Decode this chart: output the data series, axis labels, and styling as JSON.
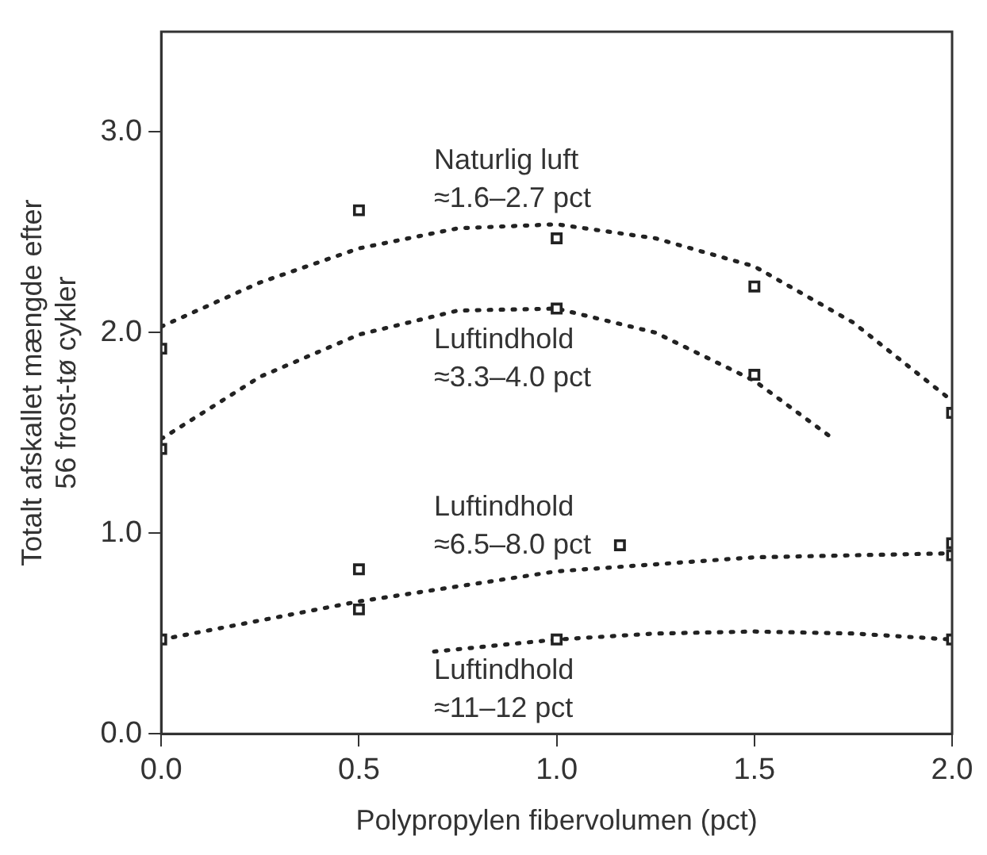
{
  "chart_data": {
    "type": "scatter",
    "xlabel": "Polypropylen fibervolumen (pct)",
    "ylabel": "Totalt afskallet mængde efter\n56 frost-tø cykler",
    "xlim": [
      0,
      2.0
    ],
    "ylim": [
      0,
      3.5
    ],
    "xticks": [
      {
        "value": 0,
        "label": "0.0"
      },
      {
        "value": 0.5,
        "label": "0.5"
      },
      {
        "value": 1,
        "label": "1.0"
      },
      {
        "value": 1.5,
        "label": "1.5"
      },
      {
        "value": 2,
        "label": "2.0"
      }
    ],
    "yticks": [
      {
        "value": 0,
        "label": "0.0"
      },
      {
        "value": 1,
        "label": "1.0"
      },
      {
        "value": 2,
        "label": "2.0"
      },
      {
        "value": 3,
        "label": "3.0"
      }
    ],
    "grid": false,
    "legend": false,
    "series": [
      {
        "type": "scatter",
        "marker": "square",
        "color": "#222222",
        "x": [
          0,
          0.5,
          1.0,
          1.5,
          2.0
        ],
        "values": [
          1.92,
          2.61,
          2.47,
          2.23,
          1.6
        ]
      },
      {
        "type": "line",
        "marker": "none",
        "line_style": "dotted",
        "name": "Naturlig luft\n≈1.6–2.7 pct",
        "color": "#222222",
        "x": [
          0,
          0.25,
          0.5,
          0.75,
          1.0,
          1.25,
          1.5,
          1.75,
          2.0
        ],
        "values": [
          2.03,
          2.25,
          2.42,
          2.52,
          2.54,
          2.47,
          2.33,
          2.05,
          1.66
        ]
      },
      {
        "type": "scatter",
        "marker": "square",
        "color": "#222222",
        "x": [
          0,
          1.0,
          1.5
        ],
        "values": [
          1.42,
          2.12,
          1.79
        ]
      },
      {
        "type": "line",
        "marker": "none",
        "line_style": "dotted",
        "name": "Luftindhold\n≈3.3–4.0 pct",
        "color": "#222222",
        "x": [
          0,
          0.25,
          0.5,
          0.75,
          1.0,
          1.25,
          1.5,
          1.7
        ],
        "values": [
          1.47,
          1.78,
          1.99,
          2.11,
          2.12,
          2.0,
          1.76,
          1.47
        ]
      },
      {
        "type": "scatter",
        "marker": "square",
        "color": "#222222",
        "x": [
          0,
          0.5,
          0.5,
          1.16,
          2.0,
          2.0
        ],
        "values": [
          0.47,
          0.82,
          0.62,
          0.94,
          0.95,
          0.89
        ]
      },
      {
        "type": "line",
        "marker": "none",
        "line_style": "dotted",
        "name": "Luftindhold\n≈6.5–8.0 pct",
        "color": "#222222",
        "x": [
          0,
          0.5,
          1.0,
          1.5,
          2.0
        ],
        "values": [
          0.47,
          0.66,
          0.81,
          0.88,
          0.9
        ]
      },
      {
        "type": "scatter",
        "marker": "square",
        "color": "#222222",
        "x": [
          1.0,
          2.0
        ],
        "values": [
          0.47,
          0.47
        ]
      },
      {
        "type": "line",
        "marker": "none",
        "line_style": "dotted",
        "name": "Luftindhold\n≈11–12 pct",
        "color": "#222222",
        "x": [
          0.69,
          1.0,
          1.25,
          1.5,
          1.75,
          2.0
        ],
        "values": [
          0.41,
          0.47,
          0.5,
          0.51,
          0.5,
          0.47
        ]
      }
    ]
  }
}
